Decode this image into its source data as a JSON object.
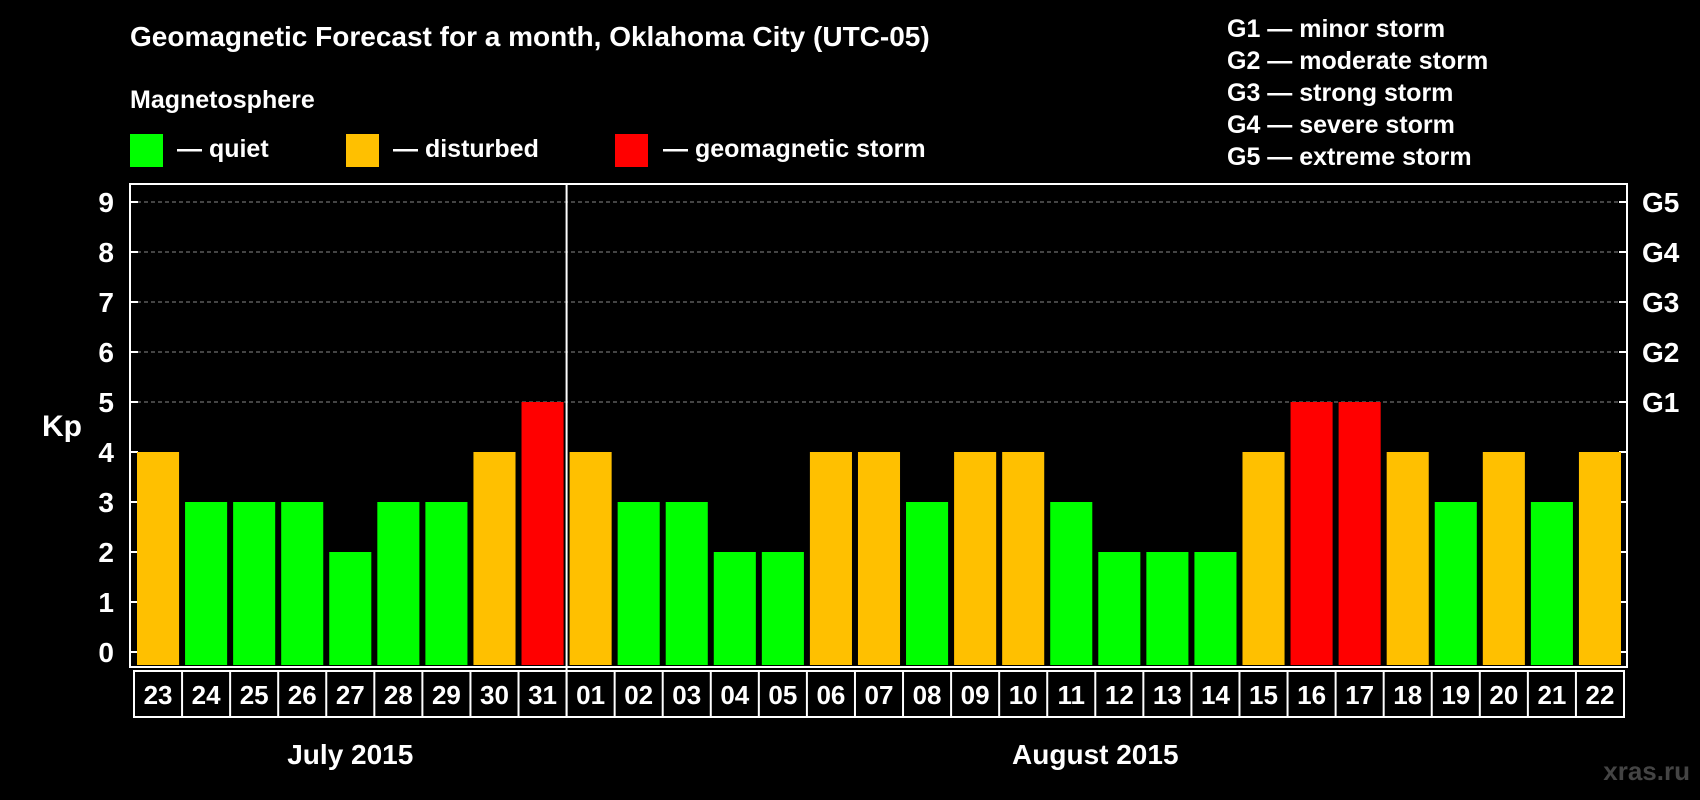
{
  "title": "Geomagnetic Forecast for a month, Oklahoma City (UTC-05)",
  "legend": {
    "heading": "Magnetosphere",
    "items": [
      {
        "label": "— quiet",
        "color": "#00ff00"
      },
      {
        "label": "— disturbed",
        "color": "#ffc000"
      },
      {
        "label": "— geomagnetic storm",
        "color": "#ff0000"
      }
    ]
  },
  "storm_scale": [
    "G1 — minor storm",
    "G2 — moderate storm",
    "G3 — strong storm",
    "G4 — severe storm",
    "G5 — extreme storm"
  ],
  "watermark": "xras.ru",
  "chart_data": {
    "type": "bar",
    "ylabel": "Kp",
    "ylim": [
      0,
      9
    ],
    "yticks": [
      "0",
      "1",
      "2",
      "3",
      "4",
      "5",
      "6",
      "7",
      "8",
      "9"
    ],
    "right_ticks": [
      {
        "kp": 5,
        "label": "G1"
      },
      {
        "kp": 6,
        "label": "G2"
      },
      {
        "kp": 7,
        "label": "G3"
      },
      {
        "kp": 8,
        "label": "G4"
      },
      {
        "kp": 9,
        "label": "G5"
      }
    ],
    "grid": "dashed horizontal at Kp 5-9",
    "categories": [
      "23",
      "24",
      "25",
      "26",
      "27",
      "28",
      "29",
      "30",
      "31",
      "01",
      "02",
      "03",
      "04",
      "05",
      "06",
      "07",
      "08",
      "09",
      "10",
      "11",
      "12",
      "13",
      "14",
      "15",
      "16",
      "17",
      "18",
      "19",
      "20",
      "21",
      "22"
    ],
    "values": [
      4,
      3,
      3,
      3,
      2,
      3,
      3,
      4,
      5,
      4,
      3,
      3,
      2,
      2,
      4,
      4,
      3,
      4,
      4,
      3,
      2,
      2,
      2,
      4,
      5,
      5,
      4,
      3,
      4,
      3,
      4
    ],
    "months": [
      {
        "label": "July 2015",
        "from": 0,
        "to": 8
      },
      {
        "label": "August 2015",
        "from": 9,
        "to": 30
      }
    ],
    "color_rule": {
      "quiet": "#00ff00",
      "disturbed": "#ffc000",
      "storm": "#ff0000"
    }
  }
}
